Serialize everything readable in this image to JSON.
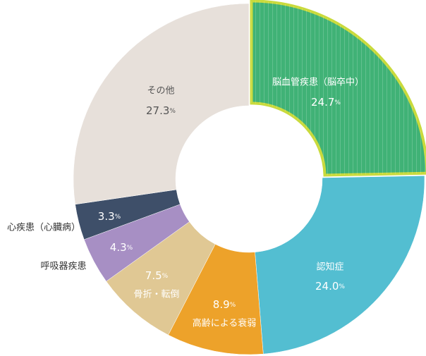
{
  "chart_data": {
    "type": "donut",
    "categories": [
      "脳血管疾患（脳卒中）",
      "認知症",
      "高齢による衰弱",
      "骨折・転倒",
      "呼吸器疾患",
      "心疾患（心臓病）",
      "その他"
    ],
    "values": [
      24.7,
      24.0,
      8.9,
      7.5,
      4.3,
      3.3,
      27.3
    ],
    "value_labels": [
      "24.7%",
      "24.0%",
      "8.9%",
      "7.5%",
      "4.3%",
      "3.3%",
      "27.3%"
    ],
    "colors": [
      "#40b276",
      "#53bed1",
      "#eda22a",
      "#e0c894",
      "#a78fc4",
      "#3e4f69",
      "#e7e0da"
    ],
    "highlight_border": "#c9da3c"
  }
}
